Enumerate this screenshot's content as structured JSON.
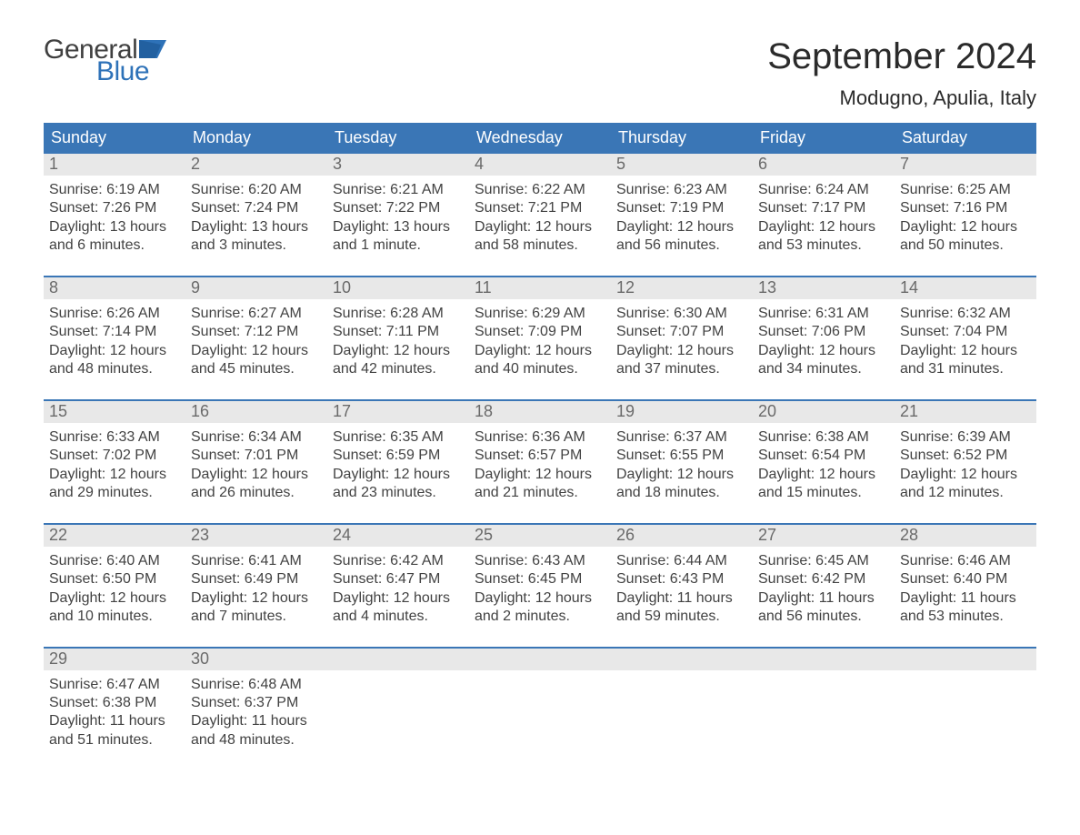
{
  "brand": {
    "word1": "General",
    "word2": "Blue",
    "flag_color": "#2e72b8",
    "text_dark": "#404040"
  },
  "title": "September 2024",
  "location": "Modugno, Apulia, Italy",
  "colors": {
    "header_bg": "#3a76b6",
    "header_text": "#ffffff",
    "daynum_bg": "#e8e8e8",
    "daynum_text": "#6a6a6a",
    "body_text": "#424242",
    "week_border": "#3a76b6",
    "page_bg": "#ffffff"
  },
  "fonts": {
    "title_size": 40,
    "location_size": 22,
    "dow_size": 18,
    "daynum_size": 18,
    "cell_size": 16
  },
  "days_of_week": [
    "Sunday",
    "Monday",
    "Tuesday",
    "Wednesday",
    "Thursday",
    "Friday",
    "Saturday"
  ],
  "weeks": [
    [
      {
        "n": "1",
        "sunrise": "Sunrise: 6:19 AM",
        "sunset": "Sunset: 7:26 PM",
        "dl1": "Daylight: 13 hours",
        "dl2": "and 6 minutes."
      },
      {
        "n": "2",
        "sunrise": "Sunrise: 6:20 AM",
        "sunset": "Sunset: 7:24 PM",
        "dl1": "Daylight: 13 hours",
        "dl2": "and 3 minutes."
      },
      {
        "n": "3",
        "sunrise": "Sunrise: 6:21 AM",
        "sunset": "Sunset: 7:22 PM",
        "dl1": "Daylight: 13 hours",
        "dl2": "and 1 minute."
      },
      {
        "n": "4",
        "sunrise": "Sunrise: 6:22 AM",
        "sunset": "Sunset: 7:21 PM",
        "dl1": "Daylight: 12 hours",
        "dl2": "and 58 minutes."
      },
      {
        "n": "5",
        "sunrise": "Sunrise: 6:23 AM",
        "sunset": "Sunset: 7:19 PM",
        "dl1": "Daylight: 12 hours",
        "dl2": "and 56 minutes."
      },
      {
        "n": "6",
        "sunrise": "Sunrise: 6:24 AM",
        "sunset": "Sunset: 7:17 PM",
        "dl1": "Daylight: 12 hours",
        "dl2": "and 53 minutes."
      },
      {
        "n": "7",
        "sunrise": "Sunrise: 6:25 AM",
        "sunset": "Sunset: 7:16 PM",
        "dl1": "Daylight: 12 hours",
        "dl2": "and 50 minutes."
      }
    ],
    [
      {
        "n": "8",
        "sunrise": "Sunrise: 6:26 AM",
        "sunset": "Sunset: 7:14 PM",
        "dl1": "Daylight: 12 hours",
        "dl2": "and 48 minutes."
      },
      {
        "n": "9",
        "sunrise": "Sunrise: 6:27 AM",
        "sunset": "Sunset: 7:12 PM",
        "dl1": "Daylight: 12 hours",
        "dl2": "and 45 minutes."
      },
      {
        "n": "10",
        "sunrise": "Sunrise: 6:28 AM",
        "sunset": "Sunset: 7:11 PM",
        "dl1": "Daylight: 12 hours",
        "dl2": "and 42 minutes."
      },
      {
        "n": "11",
        "sunrise": "Sunrise: 6:29 AM",
        "sunset": "Sunset: 7:09 PM",
        "dl1": "Daylight: 12 hours",
        "dl2": "and 40 minutes."
      },
      {
        "n": "12",
        "sunrise": "Sunrise: 6:30 AM",
        "sunset": "Sunset: 7:07 PM",
        "dl1": "Daylight: 12 hours",
        "dl2": "and 37 minutes."
      },
      {
        "n": "13",
        "sunrise": "Sunrise: 6:31 AM",
        "sunset": "Sunset: 7:06 PM",
        "dl1": "Daylight: 12 hours",
        "dl2": "and 34 minutes."
      },
      {
        "n": "14",
        "sunrise": "Sunrise: 6:32 AM",
        "sunset": "Sunset: 7:04 PM",
        "dl1": "Daylight: 12 hours",
        "dl2": "and 31 minutes."
      }
    ],
    [
      {
        "n": "15",
        "sunrise": "Sunrise: 6:33 AM",
        "sunset": "Sunset: 7:02 PM",
        "dl1": "Daylight: 12 hours",
        "dl2": "and 29 minutes."
      },
      {
        "n": "16",
        "sunrise": "Sunrise: 6:34 AM",
        "sunset": "Sunset: 7:01 PM",
        "dl1": "Daylight: 12 hours",
        "dl2": "and 26 minutes."
      },
      {
        "n": "17",
        "sunrise": "Sunrise: 6:35 AM",
        "sunset": "Sunset: 6:59 PM",
        "dl1": "Daylight: 12 hours",
        "dl2": "and 23 minutes."
      },
      {
        "n": "18",
        "sunrise": "Sunrise: 6:36 AM",
        "sunset": "Sunset: 6:57 PM",
        "dl1": "Daylight: 12 hours",
        "dl2": "and 21 minutes."
      },
      {
        "n": "19",
        "sunrise": "Sunrise: 6:37 AM",
        "sunset": "Sunset: 6:55 PM",
        "dl1": "Daylight: 12 hours",
        "dl2": "and 18 minutes."
      },
      {
        "n": "20",
        "sunrise": "Sunrise: 6:38 AM",
        "sunset": "Sunset: 6:54 PM",
        "dl1": "Daylight: 12 hours",
        "dl2": "and 15 minutes."
      },
      {
        "n": "21",
        "sunrise": "Sunrise: 6:39 AM",
        "sunset": "Sunset: 6:52 PM",
        "dl1": "Daylight: 12 hours",
        "dl2": "and 12 minutes."
      }
    ],
    [
      {
        "n": "22",
        "sunrise": "Sunrise: 6:40 AM",
        "sunset": "Sunset: 6:50 PM",
        "dl1": "Daylight: 12 hours",
        "dl2": "and 10 minutes."
      },
      {
        "n": "23",
        "sunrise": "Sunrise: 6:41 AM",
        "sunset": "Sunset: 6:49 PM",
        "dl1": "Daylight: 12 hours",
        "dl2": "and 7 minutes."
      },
      {
        "n": "24",
        "sunrise": "Sunrise: 6:42 AM",
        "sunset": "Sunset: 6:47 PM",
        "dl1": "Daylight: 12 hours",
        "dl2": "and 4 minutes."
      },
      {
        "n": "25",
        "sunrise": "Sunrise: 6:43 AM",
        "sunset": "Sunset: 6:45 PM",
        "dl1": "Daylight: 12 hours",
        "dl2": "and 2 minutes."
      },
      {
        "n": "26",
        "sunrise": "Sunrise: 6:44 AM",
        "sunset": "Sunset: 6:43 PM",
        "dl1": "Daylight: 11 hours",
        "dl2": "and 59 minutes."
      },
      {
        "n": "27",
        "sunrise": "Sunrise: 6:45 AM",
        "sunset": "Sunset: 6:42 PM",
        "dl1": "Daylight: 11 hours",
        "dl2": "and 56 minutes."
      },
      {
        "n": "28",
        "sunrise": "Sunrise: 6:46 AM",
        "sunset": "Sunset: 6:40 PM",
        "dl1": "Daylight: 11 hours",
        "dl2": "and 53 minutes."
      }
    ],
    [
      {
        "n": "29",
        "sunrise": "Sunrise: 6:47 AM",
        "sunset": "Sunset: 6:38 PM",
        "dl1": "Daylight: 11 hours",
        "dl2": "and 51 minutes."
      },
      {
        "n": "30",
        "sunrise": "Sunrise: 6:48 AM",
        "sunset": "Sunset: 6:37 PM",
        "dl1": "Daylight: 11 hours",
        "dl2": "and 48 minutes."
      },
      null,
      null,
      null,
      null,
      null
    ]
  ]
}
